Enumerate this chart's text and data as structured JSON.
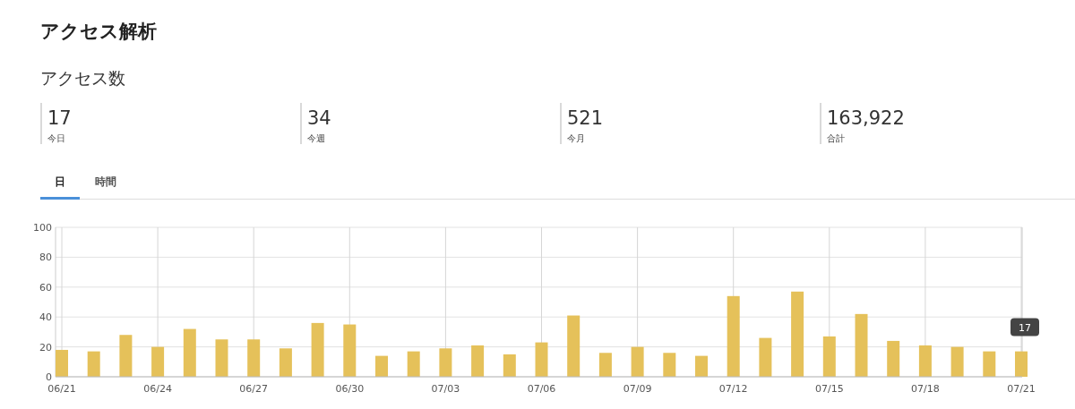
{
  "chart_data": [
    {
      "type": "other",
      "title": "アクセス解析",
      "subtitle": "アクセス数",
      "annotations": [
        "17",
        "今日",
        "34",
        "今週",
        "521",
        "今月",
        "163,922",
        "合計",
        "日",
        "時間"
      ]
    },
    {
      "type": "bar",
      "categories": [
        "06/21",
        null,
        null,
        "06/24",
        null,
        null,
        "06/27",
        null,
        null,
        "06/30",
        null,
        null,
        "07/03",
        null,
        null,
        "07/06",
        null,
        null,
        "07/09",
        null,
        null,
        "07/12",
        null,
        null,
        "07/15",
        null,
        null,
        "07/18",
        null,
        null,
        "07/21"
      ],
      "values": [
        18,
        17,
        28,
        20,
        32,
        25,
        25,
        19,
        36,
        35,
        14,
        17,
        19,
        21,
        15,
        23,
        41,
        16,
        20,
        16,
        14,
        54,
        26,
        57,
        27,
        42,
        24,
        21,
        20,
        17,
        17
      ],
      "color": "#e5c15a",
      "ylim": [
        0,
        100
      ],
      "yticks": [
        0,
        20,
        40,
        60,
        80,
        100
      ],
      "grid": true,
      "annotations": [
        {
          "text": "17",
          "x": "07/21",
          "y": 17
        }
      ]
    }
  ]
}
